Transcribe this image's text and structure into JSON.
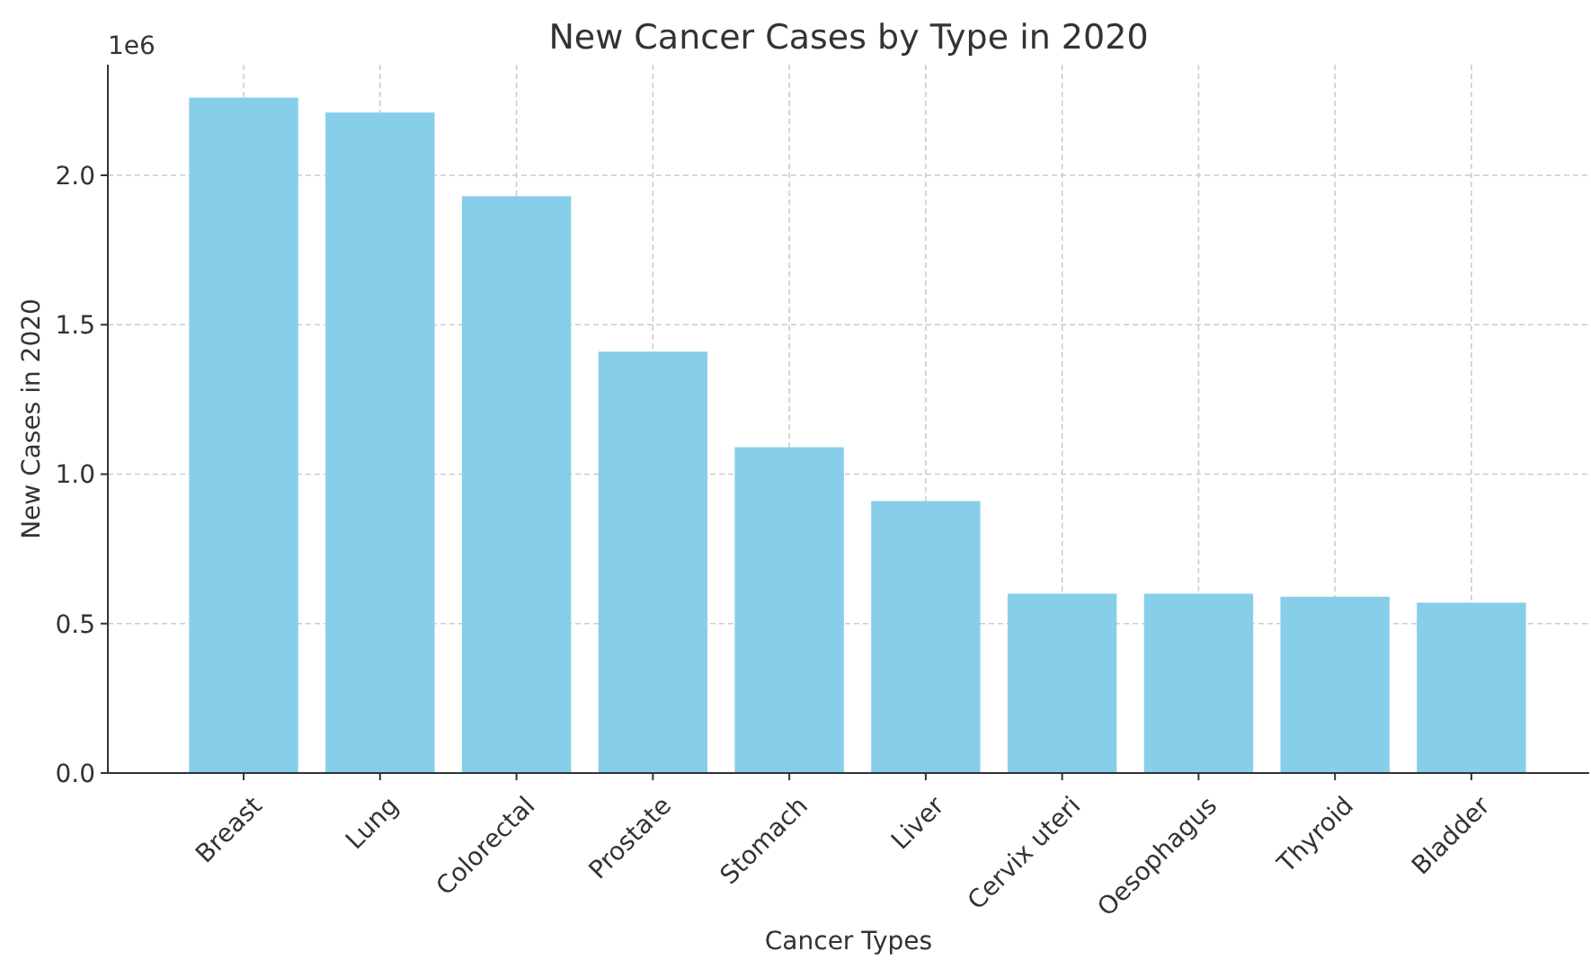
{
  "chart_data": {
    "type": "bar",
    "title": "New Cancer Cases by Type in 2020",
    "xlabel": "Cancer Types",
    "ylabel": "New Cases in 2020",
    "annotations": [
      "1e6"
    ],
    "categories": [
      "Breast",
      "Lung",
      "Colorectal",
      "Prostate",
      "Stomach",
      "Liver",
      "Cervix uteri",
      "Oesophagus",
      "Thyroid",
      "Bladder"
    ],
    "values": [
      2.26,
      2.21,
      1.93,
      1.41,
      1.09,
      0.91,
      0.6,
      0.6,
      0.59,
      0.57
    ],
    "color": "#87ceeb",
    "ylim": [
      0,
      2.37
    ],
    "yticks": [
      {
        "value": 0,
        "label": "0.0"
      },
      {
        "value": 0.5,
        "label": "0.5"
      },
      {
        "value": 1,
        "label": "1.0"
      },
      {
        "value": 1.5,
        "label": "1.5"
      },
      {
        "value": 2,
        "label": "2.0"
      }
    ],
    "grid": true
  }
}
